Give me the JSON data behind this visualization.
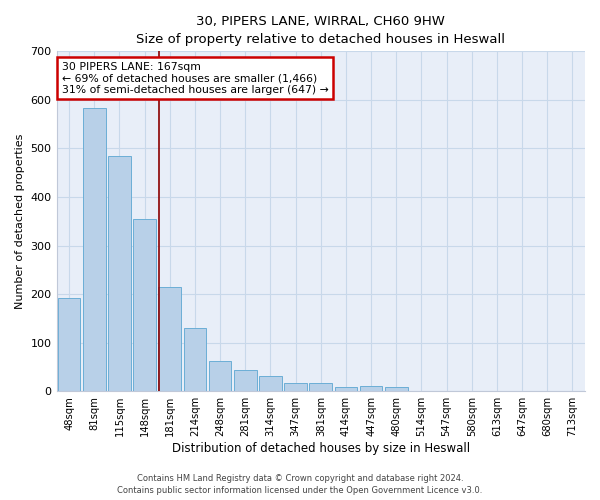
{
  "title1": "30, PIPERS LANE, WIRRAL, CH60 9HW",
  "title2": "Size of property relative to detached houses in Heswall",
  "xlabel": "Distribution of detached houses by size in Heswall",
  "ylabel": "Number of detached properties",
  "categories": [
    "48sqm",
    "81sqm",
    "115sqm",
    "148sqm",
    "181sqm",
    "214sqm",
    "248sqm",
    "281sqm",
    "314sqm",
    "347sqm",
    "381sqm",
    "414sqm",
    "447sqm",
    "480sqm",
    "514sqm",
    "547sqm",
    "580sqm",
    "613sqm",
    "647sqm",
    "680sqm",
    "713sqm"
  ],
  "values": [
    192,
    583,
    484,
    354,
    215,
    130,
    63,
    44,
    31,
    16,
    16,
    8,
    11,
    9,
    0,
    0,
    0,
    0,
    0,
    0,
    0
  ],
  "bar_color": "#b8d0e8",
  "bar_edge_color": "#6baed6",
  "vline_x": 3.58,
  "vline_color": "#8b0000",
  "annotation_text_line1": "30 PIPERS LANE: 167sqm",
  "annotation_text_line2": "← 69% of detached houses are smaller (1,466)",
  "annotation_text_line3": "31% of semi-detached houses are larger (647) →",
  "annotation_box_fc": "#ffffff",
  "annotation_box_ec": "#cc0000",
  "grid_color": "#c8d8ea",
  "background_color": "#e8eef8",
  "footer1": "Contains HM Land Registry data © Crown copyright and database right 2024.",
  "footer2": "Contains public sector information licensed under the Open Government Licence v3.0.",
  "ylim": [
    0,
    700
  ],
  "yticks": [
    0,
    100,
    200,
    300,
    400,
    500,
    600,
    700
  ]
}
